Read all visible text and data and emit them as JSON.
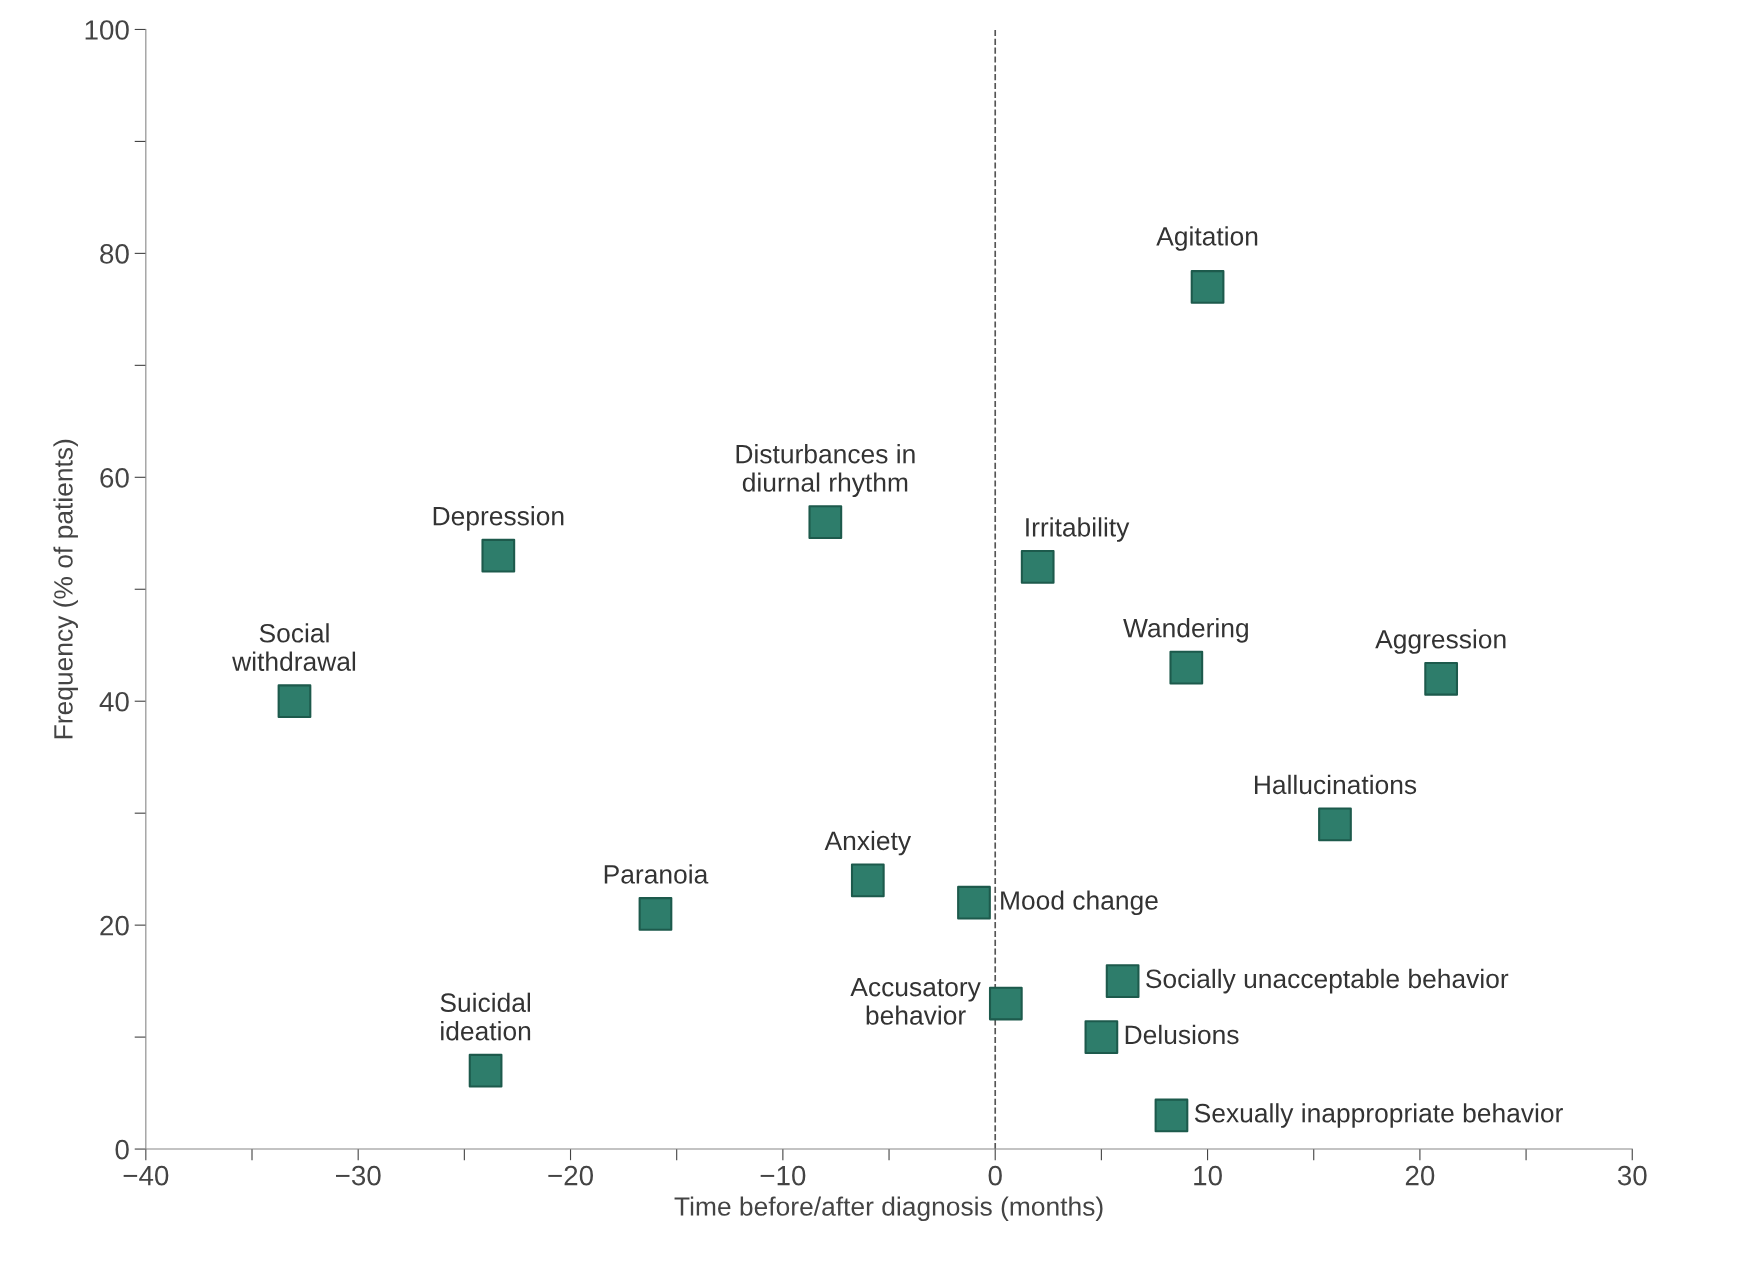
{
  "chart_data": {
    "type": "scatter",
    "xlabel": "Time before/after diagnosis (months)",
    "ylabel": "Frequency (% of patients)",
    "xlim": [
      -40,
      30
    ],
    "xticks": [
      -40,
      {
        "value": -35,
        "label": null
      },
      -30,
      {
        "value": -25,
        "label": null
      },
      -20,
      {
        "value": -15,
        "label": null
      },
      -10,
      {
        "value": -5,
        "label": null
      },
      0,
      {
        "value": 5,
        "label": null
      },
      10,
      {
        "value": 15,
        "label": null
      },
      20,
      {
        "value": 25,
        "label": null
      },
      30
    ],
    "ylim": [
      0,
      100
    ],
    "yticks": [
      0,
      {
        "value": 10,
        "label": null
      },
      20,
      {
        "value": 30,
        "label": null
      },
      40,
      {
        "value": 50,
        "label": null
      },
      60,
      {
        "value": 70,
        "label": null
      },
      80,
      {
        "value": 90,
        "label": null
      },
      100
    ],
    "grid": false,
    "marker": "square",
    "series": [
      {
        "color": "#2e7d6b",
        "x": [
          -33,
          -23.4,
          -8,
          10,
          2,
          9,
          21,
          16,
          -6,
          -16,
          -1,
          -24,
          0.5,
          6,
          5,
          8.3
        ],
        "values": [
          40,
          53,
          56,
          77,
          52,
          43,
          42,
          29,
          24,
          21,
          22,
          7,
          13,
          15,
          10,
          3
        ]
      }
    ],
    "ref_lines": [
      {
        "axis": "x",
        "value": 0,
        "color": "#555555",
        "line_style": "dashed"
      }
    ],
    "annotations": [
      {
        "text": "Social\nwithdrawal",
        "x": -33,
        "y": 40
      },
      {
        "text": "Depression",
        "x": -23.4,
        "y": 53
      },
      {
        "text": "Disturbances in\ndiurnal rhythm",
        "x": -8,
        "y": 56
      },
      {
        "text": "Agitation",
        "x": 10,
        "y": 77
      },
      {
        "text": "Irritability",
        "x": 2,
        "y": 52
      },
      {
        "text": "Wandering",
        "x": 9,
        "y": 43
      },
      {
        "text": "Aggression",
        "x": 21,
        "y": 42
      },
      {
        "text": "Hallucinations",
        "x": 16,
        "y": 29
      },
      {
        "text": "Anxiety",
        "x": -6,
        "y": 24
      },
      {
        "text": "Paranoia",
        "x": -16,
        "y": 21
      },
      {
        "text": "Mood change",
        "x": -1,
        "y": 22
      },
      {
        "text": "Suicidal\nideation",
        "x": -24,
        "y": 7
      },
      {
        "text": "Accusatory\nbehavior",
        "x": 0.5,
        "y": 13
      },
      {
        "text": "Socially unacceptable behavior",
        "x": 6,
        "y": 15
      },
      {
        "text": "Delusions",
        "x": 5,
        "y": 10
      },
      {
        "text": "Sexually inappropriate behavior",
        "x": 8.3,
        "y": 3
      }
    ]
  }
}
